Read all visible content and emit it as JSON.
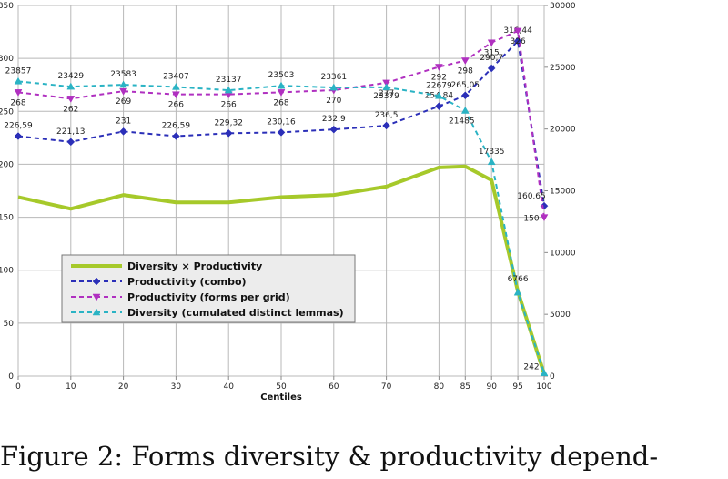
{
  "caption": "Figure 2: Forms diversity & productivity depend-",
  "chart_data": {
    "type": "line",
    "xlabel": "Centiles",
    "categories": [
      "0",
      "10",
      "20",
      "30",
      "40",
      "50",
      "60",
      "70",
      "80",
      "85",
      "90",
      "95",
      "100"
    ],
    "ylim": [
      0,
      350
    ],
    "y2lim": [
      0,
      30000
    ],
    "yticks": [
      "0",
      "50",
      "100",
      "150",
      "200",
      "250",
      "300",
      "350"
    ],
    "y2ticks": [
      "0",
      "5000",
      "10000",
      "15000",
      "20000",
      "25000",
      "30000"
    ],
    "grid": true,
    "legend_position": "lower-left",
    "series": [
      {
        "name": "Diversity × Productivity",
        "axis": "left",
        "color": "#a6c92a",
        "style": "solid",
        "marker": "none",
        "values": [
          169,
          158,
          171,
          164,
          164,
          169,
          171,
          179,
          197,
          198,
          185,
          80,
          2
        ],
        "labels": []
      },
      {
        "name": "Productivity (combo)",
        "axis": "left",
        "color": "#2b2fb8",
        "style": "dashed",
        "marker": "diamond",
        "values": [
          226.59,
          221.13,
          231,
          226.59,
          229.32,
          230.16,
          232.9,
          236.5,
          254.84,
          265.05,
          290.7,
          316.44,
          160.65
        ],
        "labels": [
          "226,59",
          "221,13",
          "231",
          "226,59",
          "229,32",
          "230,16",
          "232,9",
          "236,5",
          "254,84",
          "265,05",
          "290,7",
          "316,44",
          "160,65"
        ]
      },
      {
        "name": "Productivity (forms per grid)",
        "axis": "left",
        "color": "#b030c0",
        "style": "dashed",
        "marker": "triangle-down",
        "values": [
          268,
          262,
          269,
          266,
          266,
          268,
          270,
          277,
          292,
          298,
          315,
          326,
          150
        ],
        "labels": [
          "268",
          "262",
          "269",
          "266",
          "266",
          "268",
          "270",
          "277",
          "292",
          "298",
          "315",
          "326",
          "150"
        ]
      },
      {
        "name": "Diversity (cumulated distinct lemmas)",
        "axis": "right",
        "color": "#2ab3c4",
        "style": "dashed",
        "marker": "triangle-up",
        "values": [
          23857,
          23429,
          23583,
          23407,
          23137,
          23503,
          23361,
          23379,
          22679,
          21485,
          17335,
          6766,
          242
        ],
        "labels": [
          "23857",
          "23429",
          "23583",
          "23407",
          "23137",
          "23503",
          "23361",
          "23379",
          "22679",
          "21485",
          "17335",
          "6766",
          "242"
        ]
      }
    ]
  }
}
